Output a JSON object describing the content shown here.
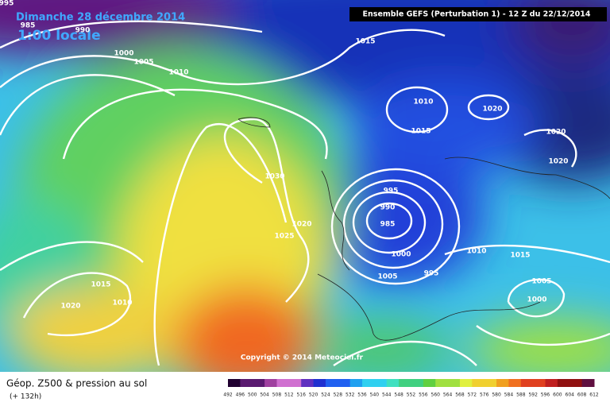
{
  "header": {
    "date": "Dimanche 28 décembre 2014",
    "time": "1:00 locale",
    "model": "Ensemble GEFS  (Perturbation 1)  -  12 Z du 22/12/2014"
  },
  "isobar_labels": [
    995,
    985,
    990,
    1000,
    1005,
    1010,
    1015,
    1010,
    1020,
    1015,
    1020,
    1020,
    1030,
    1020,
    1025,
    995,
    990,
    985,
    1000,
    1005,
    995,
    1010,
    1015,
    1005,
    1000,
    1015,
    1010,
    1020
  ],
  "copyright": "Copyright © 2014 Meteociel.fr",
  "footer": {
    "title": "Géop. Z500 & pression au sol",
    "lead": "(+ 132h)"
  },
  "legend": {
    "labels": [
      492,
      496,
      500,
      504,
      508,
      512,
      516,
      520,
      524,
      528,
      532,
      536,
      540,
      544,
      548,
      552,
      556,
      560,
      564,
      568,
      572,
      576,
      580,
      584,
      588,
      592,
      596,
      600,
      604,
      608,
      612
    ]
  }
}
